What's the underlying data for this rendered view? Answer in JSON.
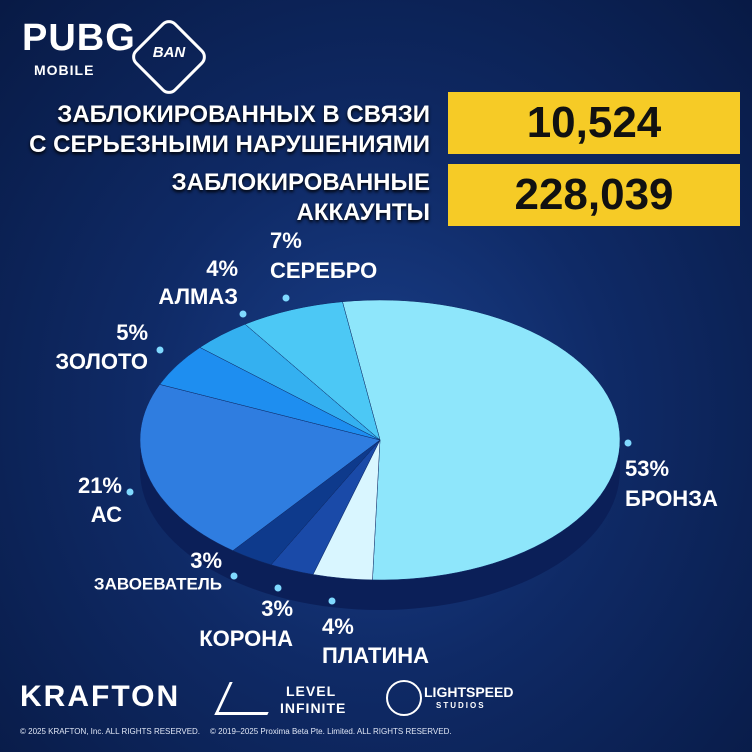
{
  "header": {
    "logo": "PUBG",
    "logo_sub": "MOBILE",
    "badge": "BAN"
  },
  "stats": [
    {
      "label": [
        "ЗАБЛОКИРОВАННЫХ В СВЯЗИ",
        "С СЕРЬЕЗНЫМИ НАРУШЕНИЯМИ"
      ],
      "value": "10,524"
    },
    {
      "label": [
        "ЗАБЛОКИРОВАННЫЕ",
        "АККАУНТЫ"
      ],
      "value": "228,039"
    }
  ],
  "chart_data": {
    "type": "pie",
    "categories": [
      "БРОНЗА",
      "ПЛАТИНА",
      "КОРОНА",
      "ЗАВОЕВАТЕЛЬ",
      "АС",
      "ЗОЛОТО",
      "АЛМАЗ",
      "СЕРЕБРО"
    ],
    "values": [
      53,
      4,
      3,
      3,
      21,
      5,
      4,
      7
    ],
    "value_labels": [
      "53%",
      "4%",
      "3%",
      "3%",
      "21%",
      "5%",
      "4%",
      "7%"
    ],
    "colors": [
      "#8ee6fb",
      "#d9f6ff",
      "#1a4aa8",
      "#0e3a8c",
      "#2f7de0",
      "#1e8ef0",
      "#34b0f0",
      "#4cc8f5"
    ]
  },
  "footer": {
    "brands": [
      "KRAFTON",
      "LEVEL",
      "INFINITE",
      "LIGHTSPEED",
      "STUDIOS"
    ],
    "copyright": [
      "© 2025 KRAFTON, Inc. ALL RIGHTS RESERVED.",
      "© 2019–2025 Proxima Beta Pte. Limited. ALL RIGHTS RESERVED."
    ]
  }
}
